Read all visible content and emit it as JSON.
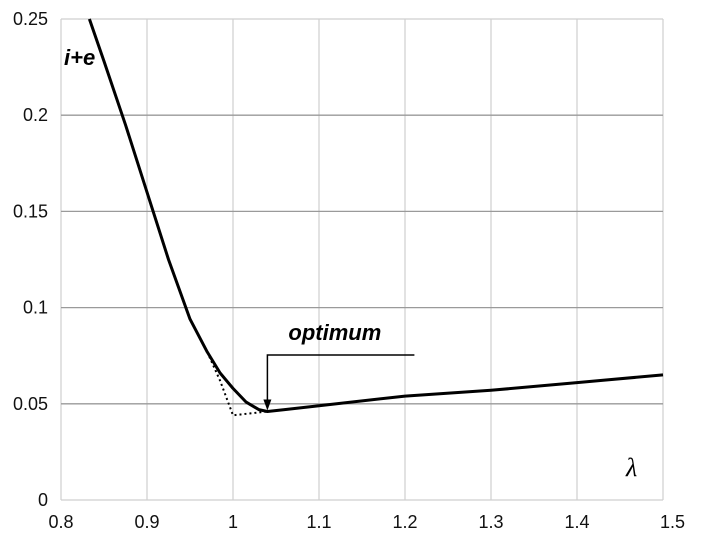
{
  "chart_data": {
    "type": "line",
    "xlim": [
      0.8,
      1.5
    ],
    "ylim": [
      0,
      0.25
    ],
    "x_ticks": [
      "0.8",
      "0.9",
      "1",
      "1.1",
      "1.2",
      "1.3",
      "1.4",
      "1.5"
    ],
    "y_ticks": [
      "0",
      "0.05",
      "0.1",
      "0.15",
      "0.2",
      "0.25"
    ],
    "grid": true,
    "ylabel": "i+e",
    "xlabel": "λ",
    "series": [
      {
        "style": "solid",
        "x": [
          0.833,
          0.85,
          0.875,
          0.9,
          0.925,
          0.95,
          0.97,
          0.985,
          1.0,
          1.015,
          1.03,
          1.04,
          1.06,
          1.1,
          1.2,
          1.3,
          1.4,
          1.5
        ],
        "y": [
          0.25,
          0.228,
          0.195,
          0.16,
          0.125,
          0.094,
          0.077,
          0.066,
          0.058,
          0.051,
          0.047,
          0.046,
          0.047,
          0.049,
          0.054,
          0.057,
          0.061,
          0.065
        ]
      },
      {
        "style": "dotted",
        "x": [
          0.97,
          0.985,
          1.0,
          1.04
        ],
        "y": [
          0.077,
          0.062,
          0.044,
          0.046
        ]
      }
    ],
    "annotations": [
      {
        "text": "optimum",
        "x": 1.04,
        "y": 0.046
      }
    ]
  }
}
